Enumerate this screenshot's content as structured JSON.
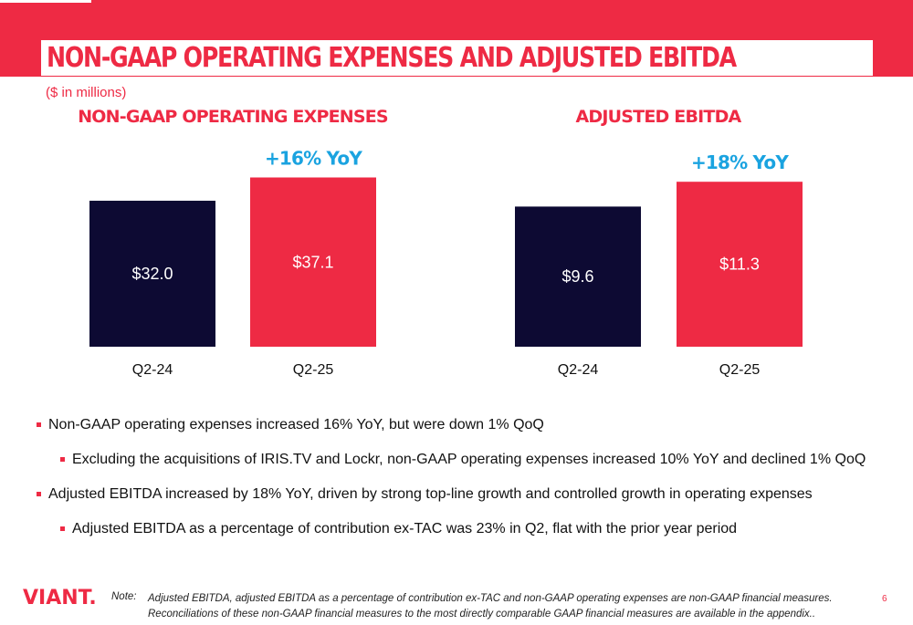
{
  "header": {
    "title": "NON-GAAP OPERATING EXPENSES AND ADJUSTED EBITDA",
    "units": "($ in millions)"
  },
  "colors": {
    "accent_red": "#ee2a44",
    "navy": "#0d0a33",
    "yoy_blue": "#1aa3e0"
  },
  "chart_data": [
    {
      "type": "bar",
      "title": "NON-GAAP OPERATING EXPENSES",
      "categories": [
        "Q2-24",
        "Q2-25"
      ],
      "values": [
        32.0,
        37.1
      ],
      "value_labels": [
        "$32.0",
        "$37.1"
      ],
      "bar_colors": [
        "#0d0a33",
        "#ee2a44"
      ],
      "annotation": "+16% YoY",
      "ylim": [
        0,
        40
      ],
      "grid": false
    },
    {
      "type": "bar",
      "title": "ADJUSTED EBITDA",
      "categories": [
        "Q2-24",
        "Q2-25"
      ],
      "values": [
        9.6,
        11.3
      ],
      "value_labels": [
        "$9.6",
        "$11.3"
      ],
      "bar_colors": [
        "#0d0a33",
        "#ee2a44"
      ],
      "annotation": "+18% YoY",
      "ylim": [
        0,
        12.5
      ],
      "grid": false
    }
  ],
  "bullets": [
    {
      "level": 0,
      "text": "Non-GAAP operating expenses increased 16% YoY, but were down 1% QoQ"
    },
    {
      "level": 1,
      "text": "Excluding the acquisitions of IRIS.TV and Lockr, non-GAAP operating expenses increased 10% YoY and declined 1% QoQ"
    },
    {
      "level": 0,
      "text": "Adjusted EBITDA increased by 18% YoY, driven by strong top-line growth and controlled growth in operating expenses"
    },
    {
      "level": 1,
      "text": "Adjusted EBITDA as a percentage of contribution ex-TAC was 23% in Q2, flat with the prior year period"
    }
  ],
  "footer": {
    "logo": "VIANT.",
    "note_label": "Note:",
    "note_text": "Adjusted EBITDA, adjusted EBITDA as a percentage of contribution ex-TAC and non-GAAP operating expenses are non-GAAP financial measures. Reconciliations of these non-GAAP financial measures to the most directly comparable GAAP financial measures are available in the appendix..",
    "page_number": "6"
  }
}
